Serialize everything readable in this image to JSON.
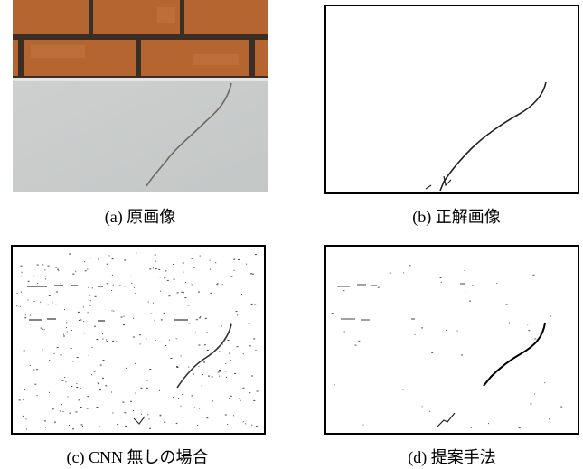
{
  "figure": {
    "panels": [
      {
        "id": "a",
        "caption": "(a) 原画像"
      },
      {
        "id": "b",
        "caption": "(b) 正解画像"
      },
      {
        "id": "c",
        "caption": "(c) CNN 無しの場合"
      },
      {
        "id": "d",
        "caption": "(d) 提案手法"
      }
    ]
  }
}
